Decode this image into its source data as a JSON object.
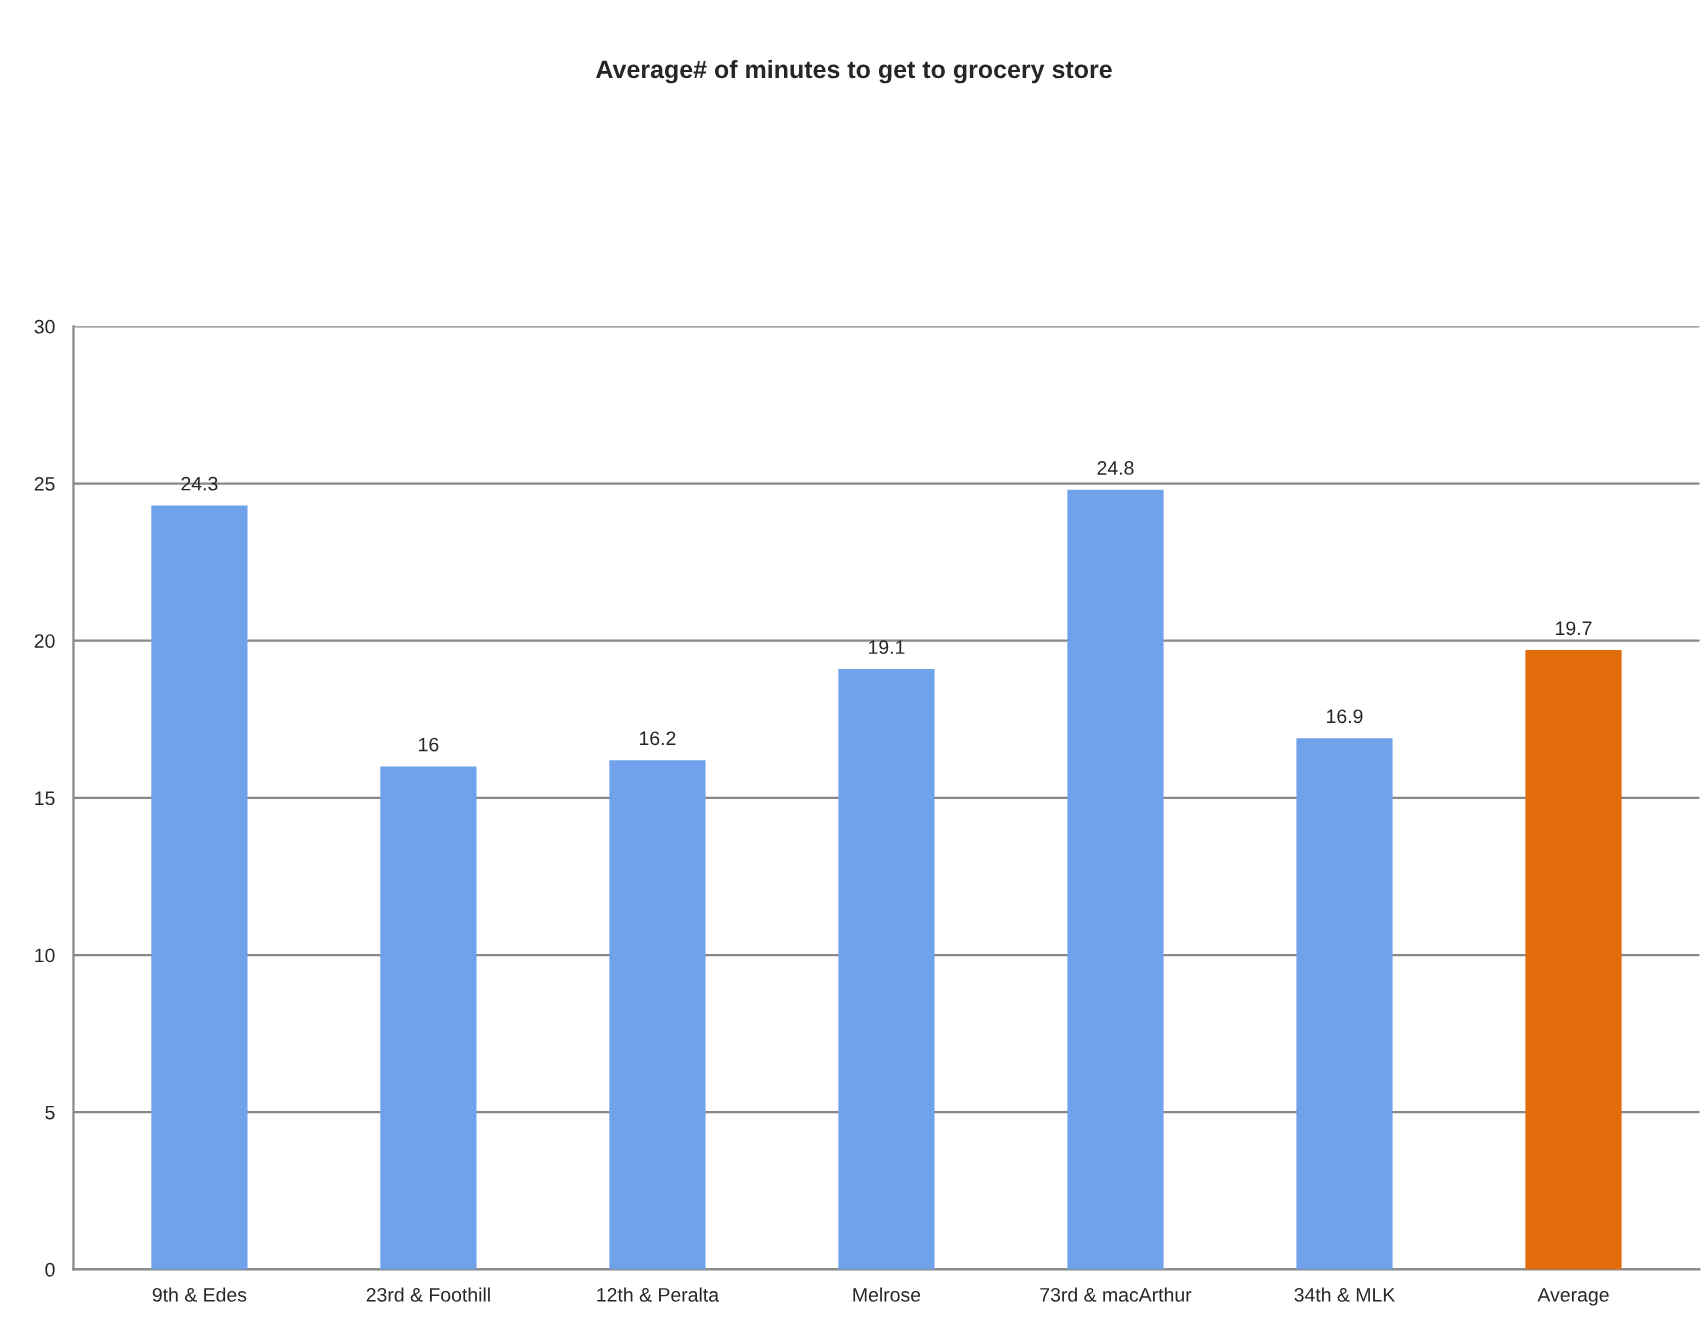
{
  "chart_data": {
    "type": "bar",
    "title": "Average# of minutes to get to grocery store",
    "categories": [
      "9th & Edes",
      "23rd & Foothill",
      "12th & Peralta",
      "Melrose",
      "73rd & macArthur",
      "34th & MLK",
      "Average"
    ],
    "values": [
      24.3,
      16,
      16.2,
      19.1,
      24.8,
      16.9,
      19.7
    ],
    "colors": [
      "#6fa2ea",
      "#6fa2ea",
      "#6fa2ea",
      "#6fa2ea",
      "#6fa2ea",
      "#6fa2ea",
      "#e36c0a"
    ],
    "ylim": [
      0,
      30
    ],
    "yticks": [
      0,
      5,
      10,
      15,
      20,
      25,
      30
    ],
    "grid": "y",
    "data_labels": true,
    "legend": false
  }
}
